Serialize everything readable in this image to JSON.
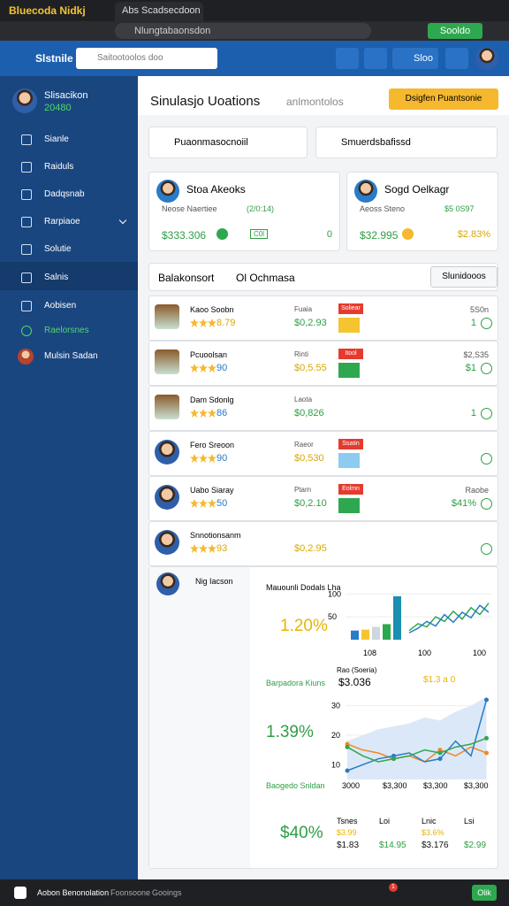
{
  "browser": {
    "tab_title": "Bluecoda Nidkj",
    "tab2": "Abs Scadsecdoon",
    "address": "Nlungtabaonsdon",
    "extension_button": "Sooldo"
  },
  "header": {
    "brand": "Slstnile",
    "search_placeholder": "Saitootoolos doo",
    "menu_label": "Sloo"
  },
  "sidebar": {
    "profile_name": "Slisacikon",
    "profile_badge": "20480",
    "items": [
      "Sianle",
      "Raiduls",
      "Dadqsnab",
      "Rarpiaoe",
      "Solutie",
      "Salnis",
      "Aobisen",
      "Raelorsnes",
      "Mulsin Sadan"
    ]
  },
  "main": {
    "title": "Sinulasjo Uoations",
    "subtitle": "anlmontolos",
    "action": "Dsigfen Puantsonie",
    "filter1": "Puaonmasocnoiil",
    "filter2": "Smuerdsbafissd",
    "cards": [
      {
        "name": "Stoa Akeoks",
        "sub": "Neose Naertiee",
        "sub_value": "(2/0:14)",
        "value": "$333.306",
        "badge": "C0l",
        "right": "0",
        "right_color": "#2e9e45"
      },
      {
        "name": "Sogd Oelkagr",
        "sub": "Aeoss Steno",
        "sub_value": "$5 0S97",
        "value": "$32.995",
        "right": "$2.83%",
        "right_color": "#d8a800"
      }
    ],
    "list": {
      "title": "Balakonsort",
      "title2": "Ol Ochmasa",
      "dropdown": "Slunidooos",
      "rows": [
        {
          "name": "Kaoo Soobn",
          "rating": "8.79",
          "rating_color": "#d8a800",
          "label": "Fuaia",
          "value": "$0,2.93",
          "value_color": "#2e9e45",
          "tag": "Soliear",
          "block_color": "#f5c431",
          "right": "5S0n",
          "status": "1"
        },
        {
          "name": "Pcuoolsan",
          "rating": "90",
          "rating_color": "#2a7bc8",
          "label": "Rinti",
          "value": "$0,5.55",
          "value_color": "#d8a800",
          "tag": "Itool",
          "block_color": "#2ea84f",
          "right": "$2,S35",
          "status": "$1"
        },
        {
          "name": "Dam Sdonlg",
          "rating": "86",
          "rating_color": "#2a7bc8",
          "label": "Laota",
          "value": "$0,826",
          "value_color": "#2e9e45",
          "status": "1"
        },
        {
          "name": "Fero Sreoon",
          "rating": "90",
          "rating_color": "#2a7bc8",
          "label": "Raeor",
          "value": "$0,530",
          "value_color": "#d8a800",
          "tag": "Ssatin",
          "block_color": "#8ecbf0"
        },
        {
          "name": "Uabo Siaray",
          "rating": "50",
          "rating_color": "#2a7bc8",
          "label": "Ptarn",
          "value": "$0,2.10",
          "value_color": "#2e9e45",
          "tag": "Eolmn",
          "block_color": "#2ea84f",
          "right": "Raobe",
          "status": "$41%"
        },
        {
          "name": "Snnotionsanm",
          "rating": "93",
          "rating_color": "#d8a800",
          "value": "$0,2.95",
          "value_color": "#d8a800"
        }
      ]
    },
    "panel": {
      "person": "Nig Iacson",
      "chart1": {
        "type": "bar",
        "title": "Mauounli Dodals Lha",
        "headline": "1.20%",
        "ylim": [
          0,
          120
        ],
        "yticks": [
          50,
          100
        ],
        "bars": [
          {
            "color": "#2a7bc8",
            "value": 20
          },
          {
            "color": "#f5c431",
            "value": 22
          },
          {
            "color": "#cfd6df",
            "value": 28
          },
          {
            "color": "#2ea84f",
            "value": 34
          },
          {
            "color": "#1b8fb0",
            "value": 95
          }
        ],
        "series": [
          {
            "color": "#2ea84f",
            "values": [
              20,
              35,
              28,
              50,
              40,
              62,
              45,
              70,
              55,
              80
            ]
          },
          {
            "color": "#2a7bc8",
            "values": [
              15,
              25,
              40,
              30,
              55,
              38,
              60,
              48,
              75,
              60
            ]
          }
        ],
        "x_labels": [
          "108",
          "100",
          "100"
        ]
      },
      "chart2": {
        "type": "area",
        "title": "Barpadora Kiuns",
        "headline": "$3.036",
        "highlight": "$1.3 a 0",
        "change": "1.39%",
        "axis_label": "Rao (Soeria)",
        "ylim": [
          5,
          35
        ],
        "yticks": [
          10,
          20,
          30
        ],
        "area": [
          18,
          20,
          22,
          23,
          24,
          26,
          25,
          28,
          30,
          33
        ],
        "series": [
          {
            "color": "#f08a24",
            "values": [
              17,
              15,
              14,
              12,
              13,
              11,
              15,
              13,
              16,
              14
            ]
          },
          {
            "color": "#2a7bc8",
            "values": [
              8,
              10,
              12,
              13,
              14,
              11,
              12,
              18,
              13,
              32
            ]
          },
          {
            "color": "#2ea84f",
            "values": [
              16,
              13,
              11,
              12,
              13,
              15,
              14,
              16,
              17,
              19
            ]
          }
        ],
        "x_labels": [
          "3000",
          "$3,300",
          "$3,300",
          "$3,300"
        ]
      },
      "chart3": {
        "title": "Baogedo Snldan",
        "headline": "$40%",
        "columns": [
          {
            "head": "Tsnes",
            "sub": "$3.99",
            "value": "$1.83"
          },
          {
            "head": "Loi",
            "value": "$14.95"
          },
          {
            "head": "Lnic",
            "sub": "$3.6%",
            "value": "$3.176"
          },
          {
            "head": "Lsi",
            "value": "$2.99"
          }
        ]
      }
    }
  },
  "taskbar": {
    "app": "Aobon Benonolation",
    "item2": "Foonsoone",
    "item3": "Gooings",
    "notification": "1",
    "button": "Olik"
  }
}
